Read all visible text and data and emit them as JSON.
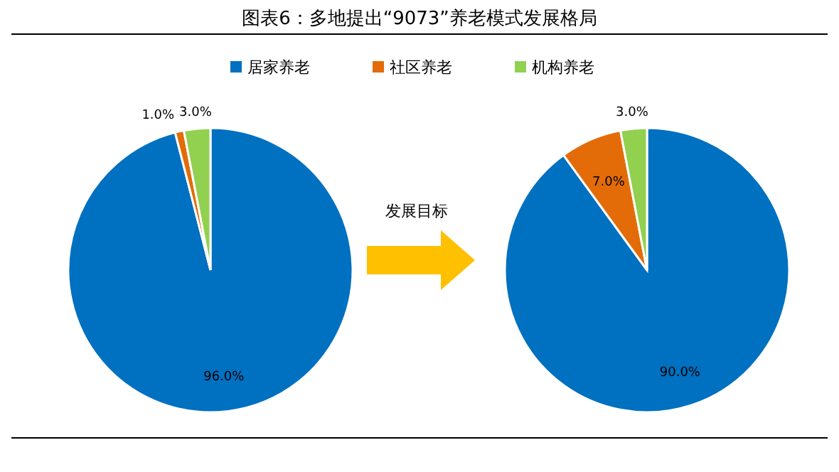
{
  "chart_data": [
    {
      "type": "pie",
      "title": "图表6：多地提出“9073”养老模式发展格局",
      "categories": [
        "居家养老",
        "社区养老",
        "机构养老"
      ],
      "values": [
        96.0,
        1.0,
        3.0
      ],
      "colors": [
        "#0070c0",
        "#e36c09",
        "#92d050"
      ],
      "value_labels": [
        "96.0%",
        "1.0%",
        "3.0%"
      ],
      "legend": "top"
    },
    {
      "type": "pie",
      "values": [
        90.0,
        7.0,
        3.0
      ],
      "colors": [
        "#0070c0",
        "#e36c09",
        "#92d050"
      ],
      "value_labels": [
        "90.0%",
        "7.0%",
        "3.0%"
      ],
      "annotations": [
        "发展目标"
      ]
    }
  ]
}
